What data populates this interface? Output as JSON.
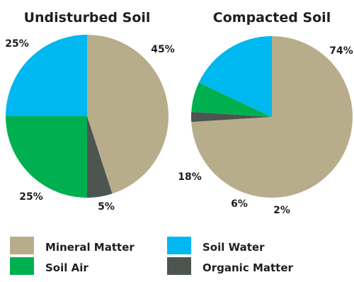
{
  "chart_data": [
    {
      "type": "pie",
      "title": "Undisturbed Soil",
      "slices": [
        {
          "category": "Mineral Matter",
          "value": 45,
          "label": "45%"
        },
        {
          "category": "Organic Matter",
          "value": 5,
          "label": "5%"
        },
        {
          "category": "Soil Air",
          "value": 25,
          "label": "25%"
        },
        {
          "category": "Soil Water",
          "value": 25,
          "label": "25%"
        }
      ]
    },
    {
      "type": "pie",
      "title": "Compacted Soil",
      "slices": [
        {
          "category": "Mineral Matter",
          "value": 74,
          "label": "74%"
        },
        {
          "category": "Organic Matter",
          "value": 2,
          "label": "2%"
        },
        {
          "category": "Soil Air",
          "value": 6,
          "label": "6%"
        },
        {
          "category": "Soil Water",
          "value": 18,
          "label": "18%"
        }
      ]
    }
  ],
  "legend": [
    {
      "label": "Mineral Matter",
      "color": "#b8ad8b"
    },
    {
      "label": "Soil Water",
      "color": "#00b8f0"
    },
    {
      "label": "Soil Air",
      "color": "#00b050"
    },
    {
      "label": "Organic Matter",
      "color": "#4d5551"
    }
  ]
}
